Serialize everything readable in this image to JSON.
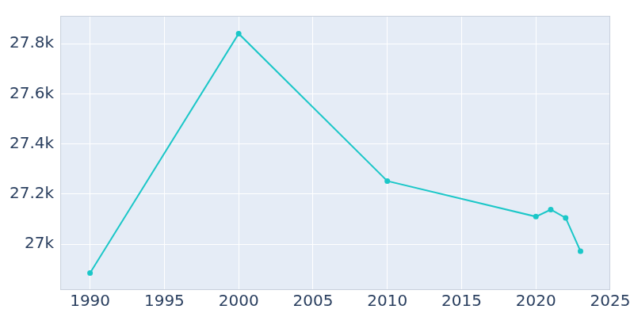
{
  "chart_data": {
    "type": "line",
    "x": [
      1990,
      2000,
      2010,
      2020,
      2021,
      2022,
      2023
    ],
    "values": [
      26885,
      27840,
      27252,
      27110,
      27138,
      27105,
      26972
    ],
    "color": "#1bc7c8",
    "marker": "circle",
    "xlim": [
      1988,
      2025
    ],
    "xticks": [
      1990,
      1995,
      2000,
      2005,
      2010,
      2015,
      2020,
      2025
    ],
    "ylim": [
      26817,
      27911
    ],
    "yticks": [
      {
        "value": 27000,
        "label": "27k"
      },
      {
        "value": 27200,
        "label": "27.2k"
      },
      {
        "value": 27400,
        "label": "27.4k"
      },
      {
        "value": 27600,
        "label": "27.6k"
      },
      {
        "value": 27800,
        "label": "27.8k"
      }
    ],
    "grid": true
  }
}
